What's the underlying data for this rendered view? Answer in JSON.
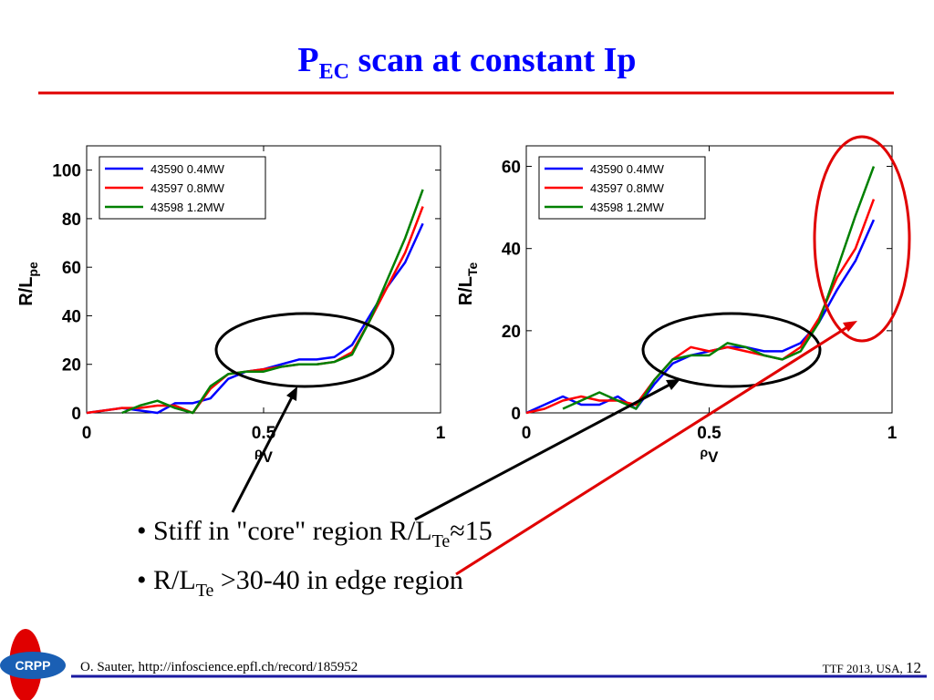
{
  "slide": {
    "title": {
      "main": "P",
      "sub": "EC",
      "rest": " scan at constant Ip"
    },
    "bullets": [
      {
        "bullet": "•",
        "text": " Stiff in \"core\" region R/L",
        "sub": "Te",
        "rest": "≈15"
      },
      {
        "bullet": "•",
        "text": " R/L",
        "sub": "Te",
        "rest": " >30-40 in edge region"
      }
    ],
    "logo": "CRPP",
    "footer_left": "O. Sauter, http://infoscience.epfl.ch/record/185952",
    "footer_right": "TTF 2013, USA, ",
    "page_number": "12"
  },
  "chart_data": [
    {
      "type": "line",
      "ylabel": "R/L",
      "ylabel_sub": "pe",
      "xlabel": "ρ",
      "xlabel_sub": "V",
      "x": [
        0,
        0.05,
        0.1,
        0.15,
        0.2,
        0.25,
        0.3,
        0.35,
        0.4,
        0.45,
        0.5,
        0.55,
        0.6,
        0.65,
        0.7,
        0.75,
        0.8,
        0.85,
        0.9,
        0.95
      ],
      "xlim": [
        0,
        1
      ],
      "xticks": [
        0,
        0.5,
        1
      ],
      "ylim": [
        0,
        110
      ],
      "yticks": [
        0,
        20,
        40,
        60,
        80,
        100
      ],
      "legend": "upper left",
      "series": [
        {
          "name": "43590 0.4MW",
          "color": "#0000ff",
          "values": [
            0,
            1,
            2,
            1,
            0,
            4,
            4,
            6,
            14,
            17,
            18,
            20,
            22,
            22,
            23,
            28,
            40,
            52,
            62,
            78
          ]
        },
        {
          "name": "43597 0.8MW",
          "color": "#ff0000",
          "values": [
            0,
            1,
            2,
            2,
            3,
            3,
            0,
            10,
            16,
            17,
            18,
            19,
            20,
            20,
            21,
            25,
            38,
            52,
            66,
            85
          ]
        },
        {
          "name": "43598 1.2MW",
          "color": "#008000",
          "values": [
            null,
            null,
            0,
            3,
            5,
            2,
            0,
            11,
            16,
            17,
            17,
            19,
            20,
            20,
            21,
            24,
            38,
            55,
            72,
            92
          ]
        }
      ]
    },
    {
      "type": "line",
      "ylabel": "R/L",
      "ylabel_sub": "Te",
      "xlabel": "ρ",
      "xlabel_sub": "V",
      "x": [
        0,
        0.05,
        0.1,
        0.15,
        0.2,
        0.25,
        0.3,
        0.35,
        0.4,
        0.45,
        0.5,
        0.55,
        0.6,
        0.65,
        0.7,
        0.75,
        0.8,
        0.85,
        0.9,
        0.95
      ],
      "xlim": [
        0,
        1
      ],
      "xticks": [
        0,
        0.5,
        1
      ],
      "ylim": [
        0,
        65
      ],
      "yticks": [
        0,
        20,
        40,
        60
      ],
      "legend": "upper left",
      "series": [
        {
          "name": "43590 0.4MW",
          "color": "#0000ff",
          "values": [
            0,
            2,
            4,
            2,
            2,
            4,
            1,
            7,
            12,
            14,
            15,
            16,
            16,
            15,
            15,
            17,
            22,
            30,
            37,
            47
          ]
        },
        {
          "name": "43597 0.8MW",
          "color": "#ff0000",
          "values": [
            0,
            1,
            3,
            4,
            3,
            3,
            2,
            8,
            13,
            16,
            15,
            16,
            15,
            14,
            13,
            16,
            23,
            33,
            40,
            52
          ]
        },
        {
          "name": "43598 1.2MW",
          "color": "#008000",
          "values": [
            null,
            null,
            1,
            3,
            5,
            3,
            1,
            8,
            13,
            14,
            14,
            17,
            16,
            14,
            13,
            15,
            22,
            35,
            48,
            60
          ]
        }
      ]
    }
  ]
}
